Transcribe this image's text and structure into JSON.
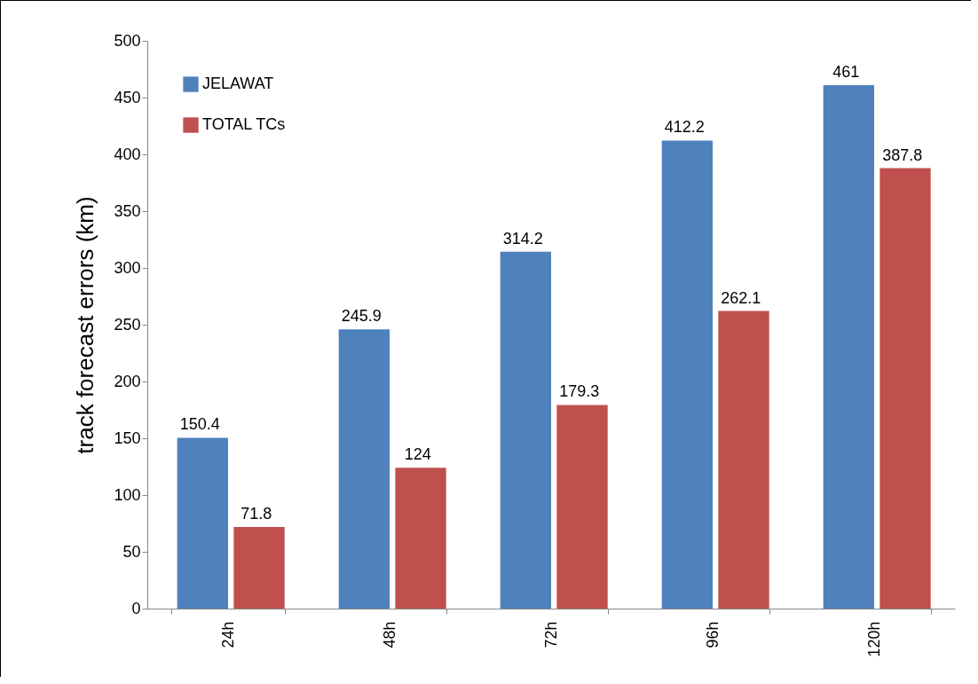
{
  "chart_data": {
    "type": "bar",
    "ylabel": "track forecast errors (km)",
    "categories": [
      "24h",
      "48h",
      "72h",
      "96h",
      "120h"
    ],
    "series": [
      {
        "name": "JELAWAT",
        "color": "#4f81bd",
        "values": [
          150.4,
          245.9,
          314.2,
          412.2,
          461
        ]
      },
      {
        "name": "TOTAL TCs",
        "color": "#c0504d",
        "values": [
          71.8,
          124,
          179.3,
          262.1,
          387.8
        ]
      }
    ],
    "ylim": [
      0,
      500
    ],
    "yticks": [
      0,
      50,
      100,
      150,
      200,
      250,
      300,
      350,
      400,
      450,
      500
    ],
    "data_labels": true,
    "legend": "top left",
    "grid": false
  }
}
